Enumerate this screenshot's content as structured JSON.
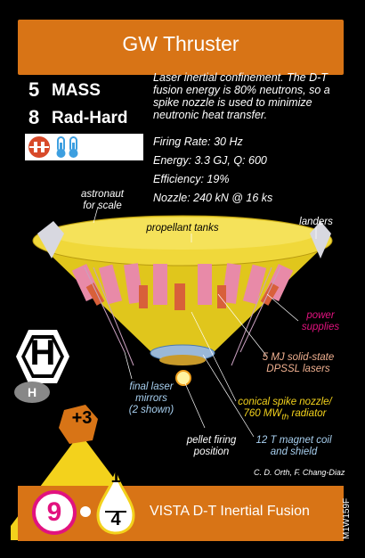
{
  "card": {
    "title": "GW Thruster",
    "mass": {
      "value": "5",
      "label": "MASS"
    },
    "radhard": {
      "value": "8",
      "label": "Rad-Hard"
    },
    "description": "Laser inertial confinement. The D-T fusion energy is 80% neutrons, so a spike nozzle is used to minimize neutronic heat transfer.",
    "specs": [
      "Firing Rate: 30 Hz",
      "Energy: 3.3 GJ, Q: 600",
      "Efficiency: 19%",
      "Nozzle: 240 kN @ 16 ks"
    ],
    "type_letter": "H",
    "type_sub": "H",
    "bonus": "+3",
    "thrust": "9",
    "fuel_num": "1",
    "fuel_den": "4",
    "footer": "VISTA D-T Inertial Fusion",
    "code": "M1W159F",
    "credit": "C. D. Orth, F. Chang-Diaz"
  },
  "labels": {
    "astronaut": "astronaut\nfor scale",
    "landers": "landers",
    "propellant": "propellant tanks",
    "power": "power\nsupplies",
    "lasers": "5 MJ solid-state\nDPSSL lasers",
    "mirrors": "final laser\nmirrors\n(2 shown)",
    "nozzle": "conical spike nozzle/\n760 MW",
    "nozzle_sub": "th",
    "nozzle_end": " radiator",
    "pellet": "pellet firing\nposition",
    "magnet": "12 T magnet coil\nand shield"
  },
  "colors": {
    "orange": "#d87416",
    "yellow": "#f3d21c",
    "magenta": "#e2127f",
    "red": "#d84a2a",
    "blue": "#3d9fe0"
  }
}
